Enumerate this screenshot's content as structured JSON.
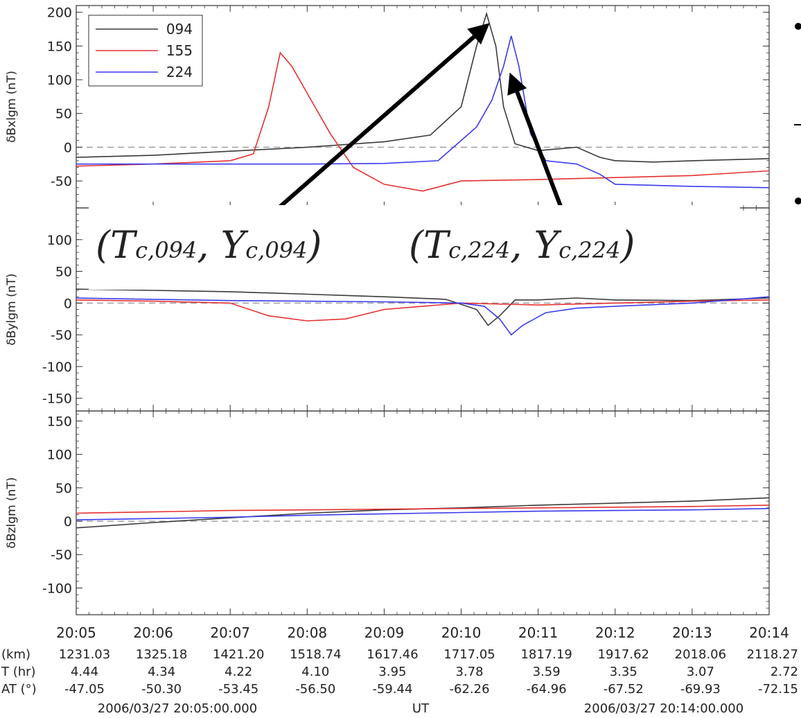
{
  "chart_data": {
    "type": "line",
    "legend": {
      "position": "top-left",
      "entries": [
        "094",
        "155",
        "224"
      ]
    },
    "series_colors": {
      "094": "#3a3a3a",
      "155": "#e53030",
      "224": "#3a3aee"
    },
    "x_ticks": [
      "20:05",
      "20:06",
      "20:07",
      "20:08",
      "20:09",
      "20:10",
      "20:11",
      "20:12",
      "20:13",
      "20:14"
    ],
    "panels": [
      {
        "ylabel": "δBxlgm (nT)",
        "ylim": [
          -90,
          210
        ],
        "yticks": [
          200,
          150,
          100,
          50,
          0,
          -50
        ],
        "series": [
          {
            "name": "094",
            "x": [
              0,
              1,
              2,
              3,
              4,
              4.6,
              5.0,
              5.2,
              5.33,
              5.45,
              5.55,
              5.7,
              6,
              6.5,
              6.8,
              7,
              7.5,
              8,
              9
            ],
            "values": [
              -15,
              -12,
              -6,
              0,
              8,
              18,
              60,
              150,
              198,
              150,
              60,
              5,
              -5,
              0,
              -15,
              -20,
              -22,
              -20,
              -17
            ]
          },
          {
            "name": "155",
            "x": [
              0,
              1,
              2,
              2.3,
              2.5,
              2.65,
              2.8,
              3.0,
              3.3,
              3.6,
              4,
              4.5,
              5,
              6,
              7,
              8,
              9
            ],
            "values": [
              -28,
              -25,
              -20,
              -10,
              60,
              140,
              120,
              80,
              20,
              -30,
              -55,
              -65,
              -50,
              -48,
              -45,
              -42,
              -35
            ]
          },
          {
            "name": "224",
            "x": [
              0,
              1,
              2,
              3,
              4,
              4.7,
              5.2,
              5.4,
              5.55,
              5.65,
              5.75,
              5.9,
              6.1,
              6.5,
              6.8,
              7,
              8,
              9
            ],
            "values": [
              -25,
              -25,
              -25,
              -25,
              -24,
              -20,
              30,
              70,
              120,
              165,
              120,
              20,
              -20,
              -25,
              -40,
              -55,
              -58,
              -60
            ]
          }
        ]
      },
      {
        "ylabel": "δBylgm (nT)",
        "ylim": [
          -170,
          150
        ],
        "yticks": [
          100,
          50,
          0,
          -50,
          -100,
          -150
        ],
        "series": [
          {
            "name": "094",
            "x": [
              0,
              1,
              2,
              3,
              4,
              4.8,
              5.2,
              5.35,
              5.5,
              5.7,
              6,
              6.5,
              7,
              8,
              9
            ],
            "values": [
              22,
              20,
              18,
              14,
              10,
              6,
              -10,
              -35,
              -20,
              5,
              5,
              8,
              5,
              4,
              8
            ]
          },
          {
            "name": "155",
            "x": [
              0,
              1,
              2,
              2.5,
              3,
              3.5,
              4,
              4.5,
              5,
              6,
              7,
              8,
              9
            ],
            "values": [
              5,
              3,
              0,
              -20,
              -28,
              -25,
              -10,
              -5,
              0,
              -3,
              0,
              3,
              5
            ]
          },
          {
            "name": "224",
            "x": [
              0,
              1,
              2,
              3,
              4,
              5,
              5.3,
              5.5,
              5.65,
              5.8,
              6.1,
              6.5,
              7,
              8,
              9
            ],
            "values": [
              8,
              6,
              4,
              3,
              2,
              0,
              -5,
              -25,
              -50,
              -35,
              -15,
              -8,
              -5,
              0,
              10
            ]
          }
        ]
      },
      {
        "ylabel": "δBzlgm (nT)",
        "ylim": [
          -140,
          165
        ],
        "yticks": [
          150,
          100,
          50,
          0,
          -50,
          -100
        ],
        "series": [
          {
            "name": "094",
            "x": [
              0,
              1,
              2,
              3,
              4,
              5,
              6,
              7,
              8,
              9
            ],
            "values": [
              -10,
              -2,
              5,
              12,
              17,
              20,
              24,
              27,
              30,
              35
            ]
          },
          {
            "name": "155",
            "x": [
              0,
              1,
              2,
              3,
              4,
              5,
              6,
              7,
              8,
              9
            ],
            "values": [
              12,
              14,
              16,
              17,
              18,
              19,
              20,
              21,
              22,
              24
            ]
          },
          {
            "name": "224",
            "x": [
              0,
              1,
              2,
              3,
              4,
              5,
              6,
              7,
              8,
              9
            ],
            "values": [
              2,
              4,
              6,
              9,
              11,
              13,
              15,
              16,
              17,
              19
            ]
          }
        ]
      }
    ],
    "bottom_rows": [
      {
        "label": "(km)",
        "values": [
          "1231.03",
          "1325.18",
          "1421.20",
          "1518.74",
          "1617.46",
          "1717.05",
          "1817.19",
          "1917.62",
          "2018.06",
          "2118.27"
        ]
      },
      {
        "label": "T (hr)",
        "values": [
          "4.44",
          "4.34",
          "4.22",
          "4.10",
          "3.95",
          "3.78",
          "3.59",
          "3.35",
          "3.07",
          "2.72"
        ]
      },
      {
        "label": "AT (°)",
        "values": [
          "-47.05",
          "-50.30",
          "-53.45",
          "-56.50",
          "-59.44",
          "-62.26",
          "-64.96",
          "-67.52",
          "-69.93",
          "-72.15"
        ]
      }
    ],
    "footer": {
      "start": "2006/03/27 20:05:00.000",
      "axis_label": "UT",
      "end": "2006/03/27 20:14:00.000"
    },
    "annotations": [
      {
        "text": "(T",
        "sub1": "c,094",
        "sep": ", Y",
        "sub2": "c,094",
        "close": ")",
        "points_to": {
          "panel": 0,
          "x": 5.33,
          "y": 180
        }
      },
      {
        "text": "(T",
        "sub1": "c,224",
        "sep": ", Y",
        "sub2": "c,224",
        "close": ")",
        "points_to": {
          "panel": 0,
          "x": 5.65,
          "y": 105
        }
      }
    ]
  }
}
